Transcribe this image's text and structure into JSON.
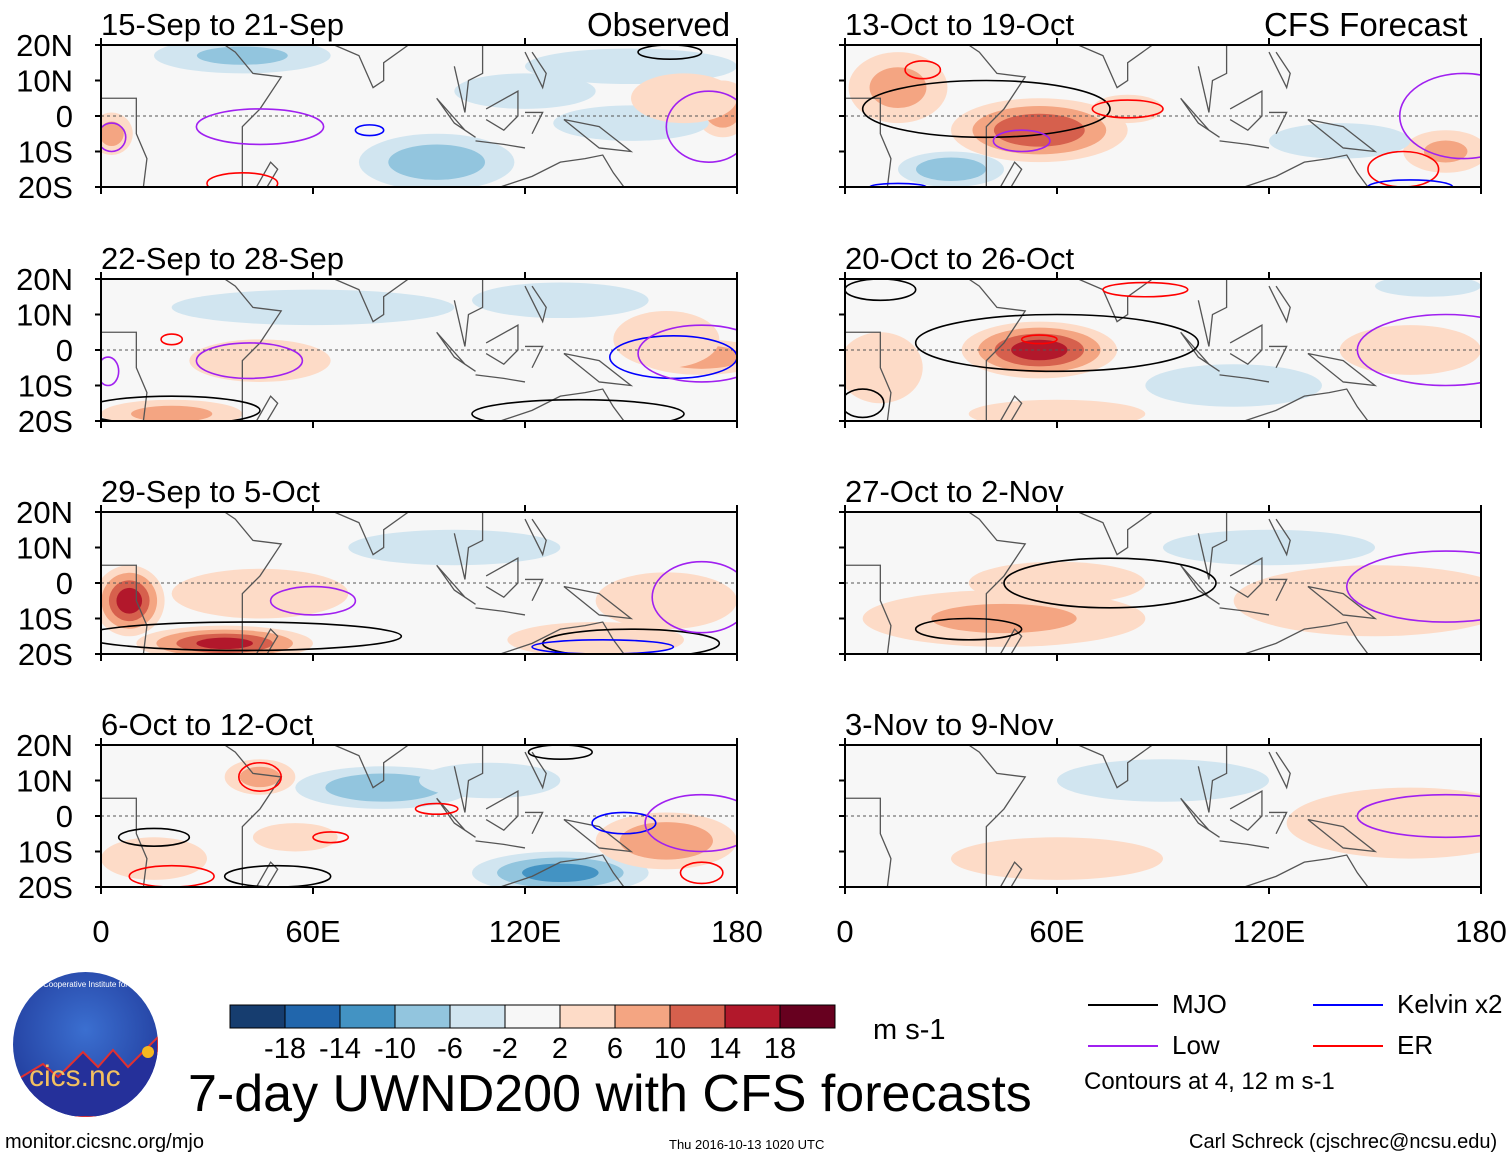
{
  "header": {
    "left_label": "Observed",
    "right_label": "CFS Forecast"
  },
  "chart_data": {
    "type": "heatmap",
    "title": "7-day UWND200 with CFS forecasts",
    "units": "m s-1",
    "lon_range": [
      0,
      180
    ],
    "lat_range": [
      -20,
      20
    ],
    "xticks": [
      "0",
      "60E",
      "120E",
      "180"
    ],
    "yticks": [
      "20N",
      "10N",
      "0",
      "10S",
      "20S"
    ],
    "colorbar": {
      "levels": [
        "-18",
        "-14",
        "-10",
        "-6",
        "-2",
        "2",
        "6",
        "10",
        "14",
        "18"
      ],
      "colors": [
        "#163d6f",
        "#2166ac",
        "#4393c3",
        "#92c5de",
        "#d1e5f0",
        "#f7f7f7",
        "#fddbc7",
        "#f4a582",
        "#d6604d",
        "#b2182b",
        "#67001f"
      ]
    },
    "contour_colors": {
      "MJO": "#000000",
      "Kelvin": "#0000ff",
      "Low": "#a020f0",
      "ER": "#ff0000"
    },
    "panels": [
      {
        "title": "15-Sep to 21-Sep",
        "col": 0,
        "row": 0,
        "anoms": [
          [
            40,
            17,
            25,
            5,
            -7
          ],
          [
            150,
            14,
            30,
            5,
            -4
          ],
          [
            95,
            -13,
            22,
            8,
            -9
          ],
          [
            3,
            -5,
            6,
            6,
            8
          ],
          [
            176,
            2,
            8,
            8,
            10
          ],
          [
            150,
            -2,
            22,
            5,
            -4
          ],
          [
            120,
            7,
            20,
            5,
            -3
          ],
          [
            165,
            5,
            15,
            7,
            5
          ]
        ],
        "contours": [
          [
            "Low",
            45,
            -3,
            18,
            5
          ],
          [
            "Kelvin",
            76,
            -4,
            4,
            1.5
          ],
          [
            "Low",
            3,
            -6,
            4,
            4
          ],
          [
            "ER",
            40,
            -19,
            10,
            3
          ],
          [
            "MJO",
            161,
            18,
            9,
            2
          ],
          [
            "Low",
            172,
            -3,
            12,
            10
          ]
        ]
      },
      {
        "title": "22-Sep to 28-Sep",
        "col": 0,
        "row": 1,
        "anoms": [
          [
            60,
            12,
            40,
            5,
            -6
          ],
          [
            130,
            14,
            25,
            5,
            -3
          ],
          [
            170,
            -2,
            18,
            5,
            10
          ],
          [
            20,
            -18,
            20,
            4,
            8
          ],
          [
            45,
            -3,
            20,
            6,
            4
          ],
          [
            160,
            3,
            15,
            8,
            4
          ]
        ],
        "contours": [
          [
            "ER",
            20,
            3,
            3,
            1.5
          ],
          [
            "Low",
            42,
            -3,
            15,
            5
          ],
          [
            "Low",
            2,
            -6,
            3,
            4
          ],
          [
            "MJO",
            20,
            -17,
            25,
            4
          ],
          [
            "Kelvin",
            162,
            -2,
            18,
            6
          ],
          [
            "Low",
            170,
            -1,
            18,
            8
          ],
          [
            "MJO",
            135,
            -18,
            30,
            4
          ]
        ]
      },
      {
        "title": "29-Sep to 5-Oct",
        "col": 0,
        "row": 2,
        "anoms": [
          [
            8,
            -5,
            10,
            10,
            16
          ],
          [
            35,
            -17,
            25,
            5,
            15
          ],
          [
            45,
            -3,
            25,
            7,
            5
          ],
          [
            140,
            -16,
            25,
            5,
            5
          ],
          [
            160,
            -5,
            20,
            8,
            4
          ],
          [
            100,
            10,
            30,
            5,
            -3
          ]
        ],
        "contours": [
          [
            "Low",
            60,
            -5,
            12,
            4
          ],
          [
            "MJO",
            40,
            -15,
            45,
            4
          ],
          [
            "MJO",
            150,
            -17,
            25,
            4
          ],
          [
            "Kelvin",
            142,
            -18,
            20,
            2
          ],
          [
            "Low",
            170,
            -4,
            14,
            10
          ]
        ]
      },
      {
        "title": "6-Oct to 12-Oct",
        "col": 0,
        "row": 3,
        "anoms": [
          [
            80,
            8,
            25,
            6,
            -10
          ],
          [
            130,
            -16,
            25,
            6,
            -12
          ],
          [
            160,
            -7,
            20,
            8,
            10
          ],
          [
            45,
            11,
            10,
            5,
            8
          ],
          [
            55,
            -6,
            12,
            4,
            6
          ],
          [
            15,
            -12,
            15,
            6,
            5
          ],
          [
            110,
            10,
            20,
            5,
            -4
          ]
        ],
        "contours": [
          [
            "ER",
            45,
            11,
            6,
            4
          ],
          [
            "ER",
            65,
            -6,
            5,
            1.5
          ],
          [
            "MJO",
            15,
            -6,
            10,
            2.5
          ],
          [
            "ER",
            20,
            -17,
            12,
            3
          ],
          [
            "MJO",
            50,
            -17,
            15,
            3
          ],
          [
            "ER",
            95,
            2,
            6,
            1.5
          ],
          [
            "Kelvin",
            148,
            -2,
            9,
            3
          ],
          [
            "Low",
            170,
            -2,
            16,
            8
          ],
          [
            "MJO",
            130,
            18,
            9,
            2
          ],
          [
            "ER",
            170,
            -16,
            6,
            3
          ]
        ]
      },
      {
        "title": "13-Oct to 19-Oct",
        "col": 1,
        "row": 0,
        "anoms": [
          [
            55,
            -4,
            25,
            9,
            14
          ],
          [
            15,
            8,
            14,
            10,
            8
          ],
          [
            30,
            -15,
            15,
            5,
            -10
          ],
          [
            80,
            2,
            10,
            4,
            6
          ],
          [
            170,
            -10,
            12,
            6,
            7
          ],
          [
            140,
            -7,
            20,
            5,
            -4
          ]
        ],
        "contours": [
          [
            "MJO",
            40,
            2,
            35,
            8
          ],
          [
            "Low",
            50,
            -7,
            8,
            3
          ],
          [
            "ER",
            22,
            13,
            5,
            2.5
          ],
          [
            "ER",
            80,
            2,
            10,
            2.5
          ],
          [
            "ER",
            158,
            -15,
            10,
            5
          ],
          [
            "Kelvin",
            160,
            -20,
            12,
            2
          ],
          [
            "Low",
            175,
            0,
            18,
            12
          ],
          [
            "Kelvin",
            15,
            -20,
            8,
            1
          ]
        ]
      },
      {
        "title": "20-Oct to 26-Oct",
        "col": 1,
        "row": 1,
        "anoms": [
          [
            55,
            0,
            22,
            8,
            16
          ],
          [
            10,
            -5,
            12,
            10,
            6
          ],
          [
            110,
            -10,
            25,
            6,
            -3
          ],
          [
            160,
            0,
            20,
            7,
            6
          ],
          [
            60,
            -18,
            25,
            4,
            5
          ],
          [
            165,
            18,
            15,
            3,
            -4
          ]
        ],
        "contours": [
          [
            "MJO",
            60,
            2,
            40,
            8
          ],
          [
            "ER",
            55,
            3,
            5,
            1.2
          ],
          [
            "ER",
            85,
            17,
            12,
            2
          ],
          [
            "MJO",
            10,
            17,
            10,
            3
          ],
          [
            "Low",
            170,
            0,
            25,
            10
          ],
          [
            "MJO",
            5,
            -15,
            6,
            4
          ]
        ]
      },
      {
        "title": "27-Oct to 2-Nov",
        "col": 1,
        "row": 2,
        "anoms": [
          [
            45,
            -10,
            40,
            8,
            7
          ],
          [
            60,
            0,
            25,
            6,
            5
          ],
          [
            150,
            -5,
            40,
            10,
            3
          ],
          [
            120,
            10,
            30,
            5,
            -3
          ]
        ],
        "contours": [
          [
            "MJO",
            75,
            0,
            30,
            7
          ],
          [
            "MJO",
            35,
            -13,
            15,
            3
          ],
          [
            "Low",
            170,
            -1,
            28,
            10
          ]
        ]
      },
      {
        "title": "3-Nov to 9-Nov",
        "col": 1,
        "row": 3,
        "anoms": [
          [
            160,
            -2,
            35,
            10,
            4
          ],
          [
            60,
            -12,
            30,
            6,
            3
          ],
          [
            90,
            10,
            30,
            6,
            -3
          ]
        ],
        "contours": [
          [
            "Low",
            170,
            0,
            25,
            6
          ]
        ]
      }
    ]
  },
  "legend": {
    "items": [
      {
        "label": "MJO",
        "type": "MJO"
      },
      {
        "label": "Kelvin x2",
        "type": "Kelvin"
      },
      {
        "label": "Low",
        "type": "Low"
      },
      {
        "label": "ER",
        "type": "ER"
      }
    ],
    "note": "Contours at 4, 12 m s-1"
  },
  "logo": {
    "text": "cics.nc",
    "ring_text": "Cooperative Institute for Climate and Satellites"
  },
  "footer": {
    "url": "monitor.cicsnc.org/mjo",
    "timestamp": "Thu 2016-10-13 1020 UTC",
    "author": "Carl Schreck (cjschrec@ncsu.edu)"
  }
}
